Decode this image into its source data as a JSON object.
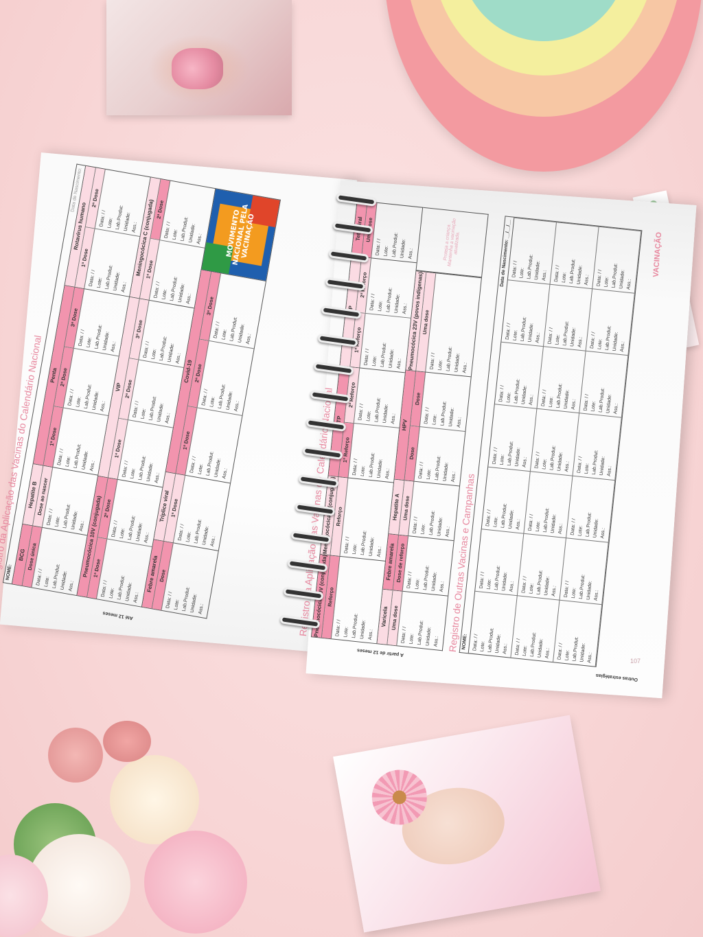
{
  "fields": [
    "Data:  /  /",
    "Lote:",
    "Lab.Produt:",
    "Unidade:",
    "Ass.:"
  ],
  "left_page": {
    "title": "Registro da Aplicação das Vacinas do Calendário Nacional",
    "name_label": "NOME:",
    "birth_label": "Data de Nascimento:",
    "age_label": "Até 12 meses",
    "logo_text": "MOVIMENTO NACIONAL PELA VACINAÇÃO",
    "rows": [
      [
        {
          "name": "BCG",
          "tone": "dark",
          "doses": [
            {
              "label": "Dose única",
              "tone": "dark"
            }
          ]
        },
        {
          "name": "Hepatite B",
          "tone": "light",
          "doses": [
            {
              "label": "Dose ao nascer",
              "tone": "light"
            }
          ]
        },
        {
          "name": "Penta",
          "tone": "dark",
          "doses": [
            {
              "label": "1ª Dose",
              "tone": "dark"
            },
            {
              "label": "2ª Dose",
              "tone": "dark"
            },
            {
              "label": "3ª Dose",
              "tone": "dark"
            }
          ]
        },
        {
          "name": "Rotavírus humano",
          "tone": "light",
          "doses": [
            {
              "label": "1ª Dose",
              "tone": "light"
            },
            {
              "label": "2ª Dose",
              "tone": "light"
            }
          ]
        }
      ],
      [
        {
          "name": "Pneumocócica 10V (conjugada)",
          "tone": "dark",
          "doses": [
            {
              "label": "1ª Dose",
              "tone": "dark"
            },
            {
              "label": "2ª Dose",
              "tone": "dark"
            }
          ]
        },
        {
          "name": "VIP",
          "tone": "light",
          "doses": [
            {
              "label": "1ª Dose",
              "tone": "light"
            },
            {
              "label": "2ª Dose",
              "tone": "light"
            },
            {
              "label": "3ª Dose",
              "tone": "light"
            }
          ]
        },
        {
          "name": "Meningocócica C (conjugada)",
          "tone": "light",
          "doses": [
            {
              "label": "1ª Dose",
              "tone": "light"
            },
            {
              "label": "2ª Dose",
              "tone": "dark"
            }
          ]
        }
      ],
      [
        {
          "name": "Febre amarela",
          "tone": "dark",
          "doses": [
            {
              "label": "Dose",
              "tone": "dark"
            }
          ]
        },
        {
          "name": "Tríplice viral",
          "tone": "light",
          "doses": [
            {
              "label": "1ª Dose",
              "tone": "light"
            }
          ]
        },
        {
          "name": "Covid-19",
          "tone": "dark",
          "doses": [
            {
              "label": "1ª Dose",
              "tone": "dark"
            },
            {
              "label": "2ª Dose",
              "tone": "dark"
            },
            {
              "label": "3ª Dose",
              "tone": "dark"
            }
          ]
        }
      ]
    ]
  },
  "right_page": {
    "title": "Registro da Aplicação das Vacinas do Calendário Nacional",
    "age_label": "A partir de 12 meses",
    "message": "Proteja a criança. Mantenha a vacinação atualizada.",
    "rows": [
      [
        {
          "name": "Pneumocócica 10V (conjugada)",
          "tone": "dark",
          "doses": [
            {
              "label": "Reforço",
              "tone": "dark"
            }
          ]
        },
        {
          "name": "Meningocócica C (conjugada)",
          "tone": "light",
          "doses": [
            {
              "label": "Reforço",
              "tone": "light"
            }
          ]
        },
        {
          "name": "DTP",
          "tone": "dark",
          "doses": [
            {
              "label": "1º Reforço",
              "tone": "dark"
            },
            {
              "label": "2º Reforço",
              "tone": "light"
            }
          ]
        },
        {
          "name": "VOP",
          "tone": "light",
          "doses": [
            {
              "label": "1º Reforço",
              "tone": "light"
            },
            {
              "label": "2º Reforço",
              "tone": "light"
            }
          ]
        },
        {
          "name": "Tetraviral",
          "tone": "dark",
          "doses": [
            {
              "label": "Uma dose",
              "tone": "dark"
            }
          ]
        }
      ],
      [
        {
          "name": "Varicela",
          "tone": "light",
          "doses": [
            {
              "label": "Uma dose",
              "tone": "light"
            }
          ]
        },
        {
          "name": "Febre amarela",
          "tone": "dark",
          "doses": [
            {
              "label": "Dose de reforço",
              "tone": "dark"
            }
          ]
        },
        {
          "name": "Hepatite A",
          "tone": "light",
          "doses": [
            {
              "label": "Uma dose",
              "tone": "light"
            }
          ]
        },
        {
          "name": "HPV",
          "tone": "dark",
          "doses": [
            {
              "label": "Dose",
              "tone": "dark"
            },
            {
              "label": "Dose",
              "tone": "dark"
            }
          ]
        },
        {
          "name": "Pneumocócica 23V (povos indígenas)",
          "tone": "light",
          "doses": [
            {
              "label": "Uma dose",
              "tone": "light"
            }
          ]
        }
      ]
    ],
    "other_title": "Registro de Outras Vacinas e Campanhas",
    "other_name_label": "NOME:",
    "other_birth_label": "Data de Nascimento: __/__/__",
    "other_side_label": "Outras estratégias",
    "other_cells_count": 21,
    "page_number": "107",
    "section_tab": "VACINAÇÃO"
  },
  "colors": {
    "dark_pink": "#f294ae",
    "light_pink": "#fbdbe3",
    "title_pink": "#e7879e",
    "background": "#f8d6d6"
  }
}
